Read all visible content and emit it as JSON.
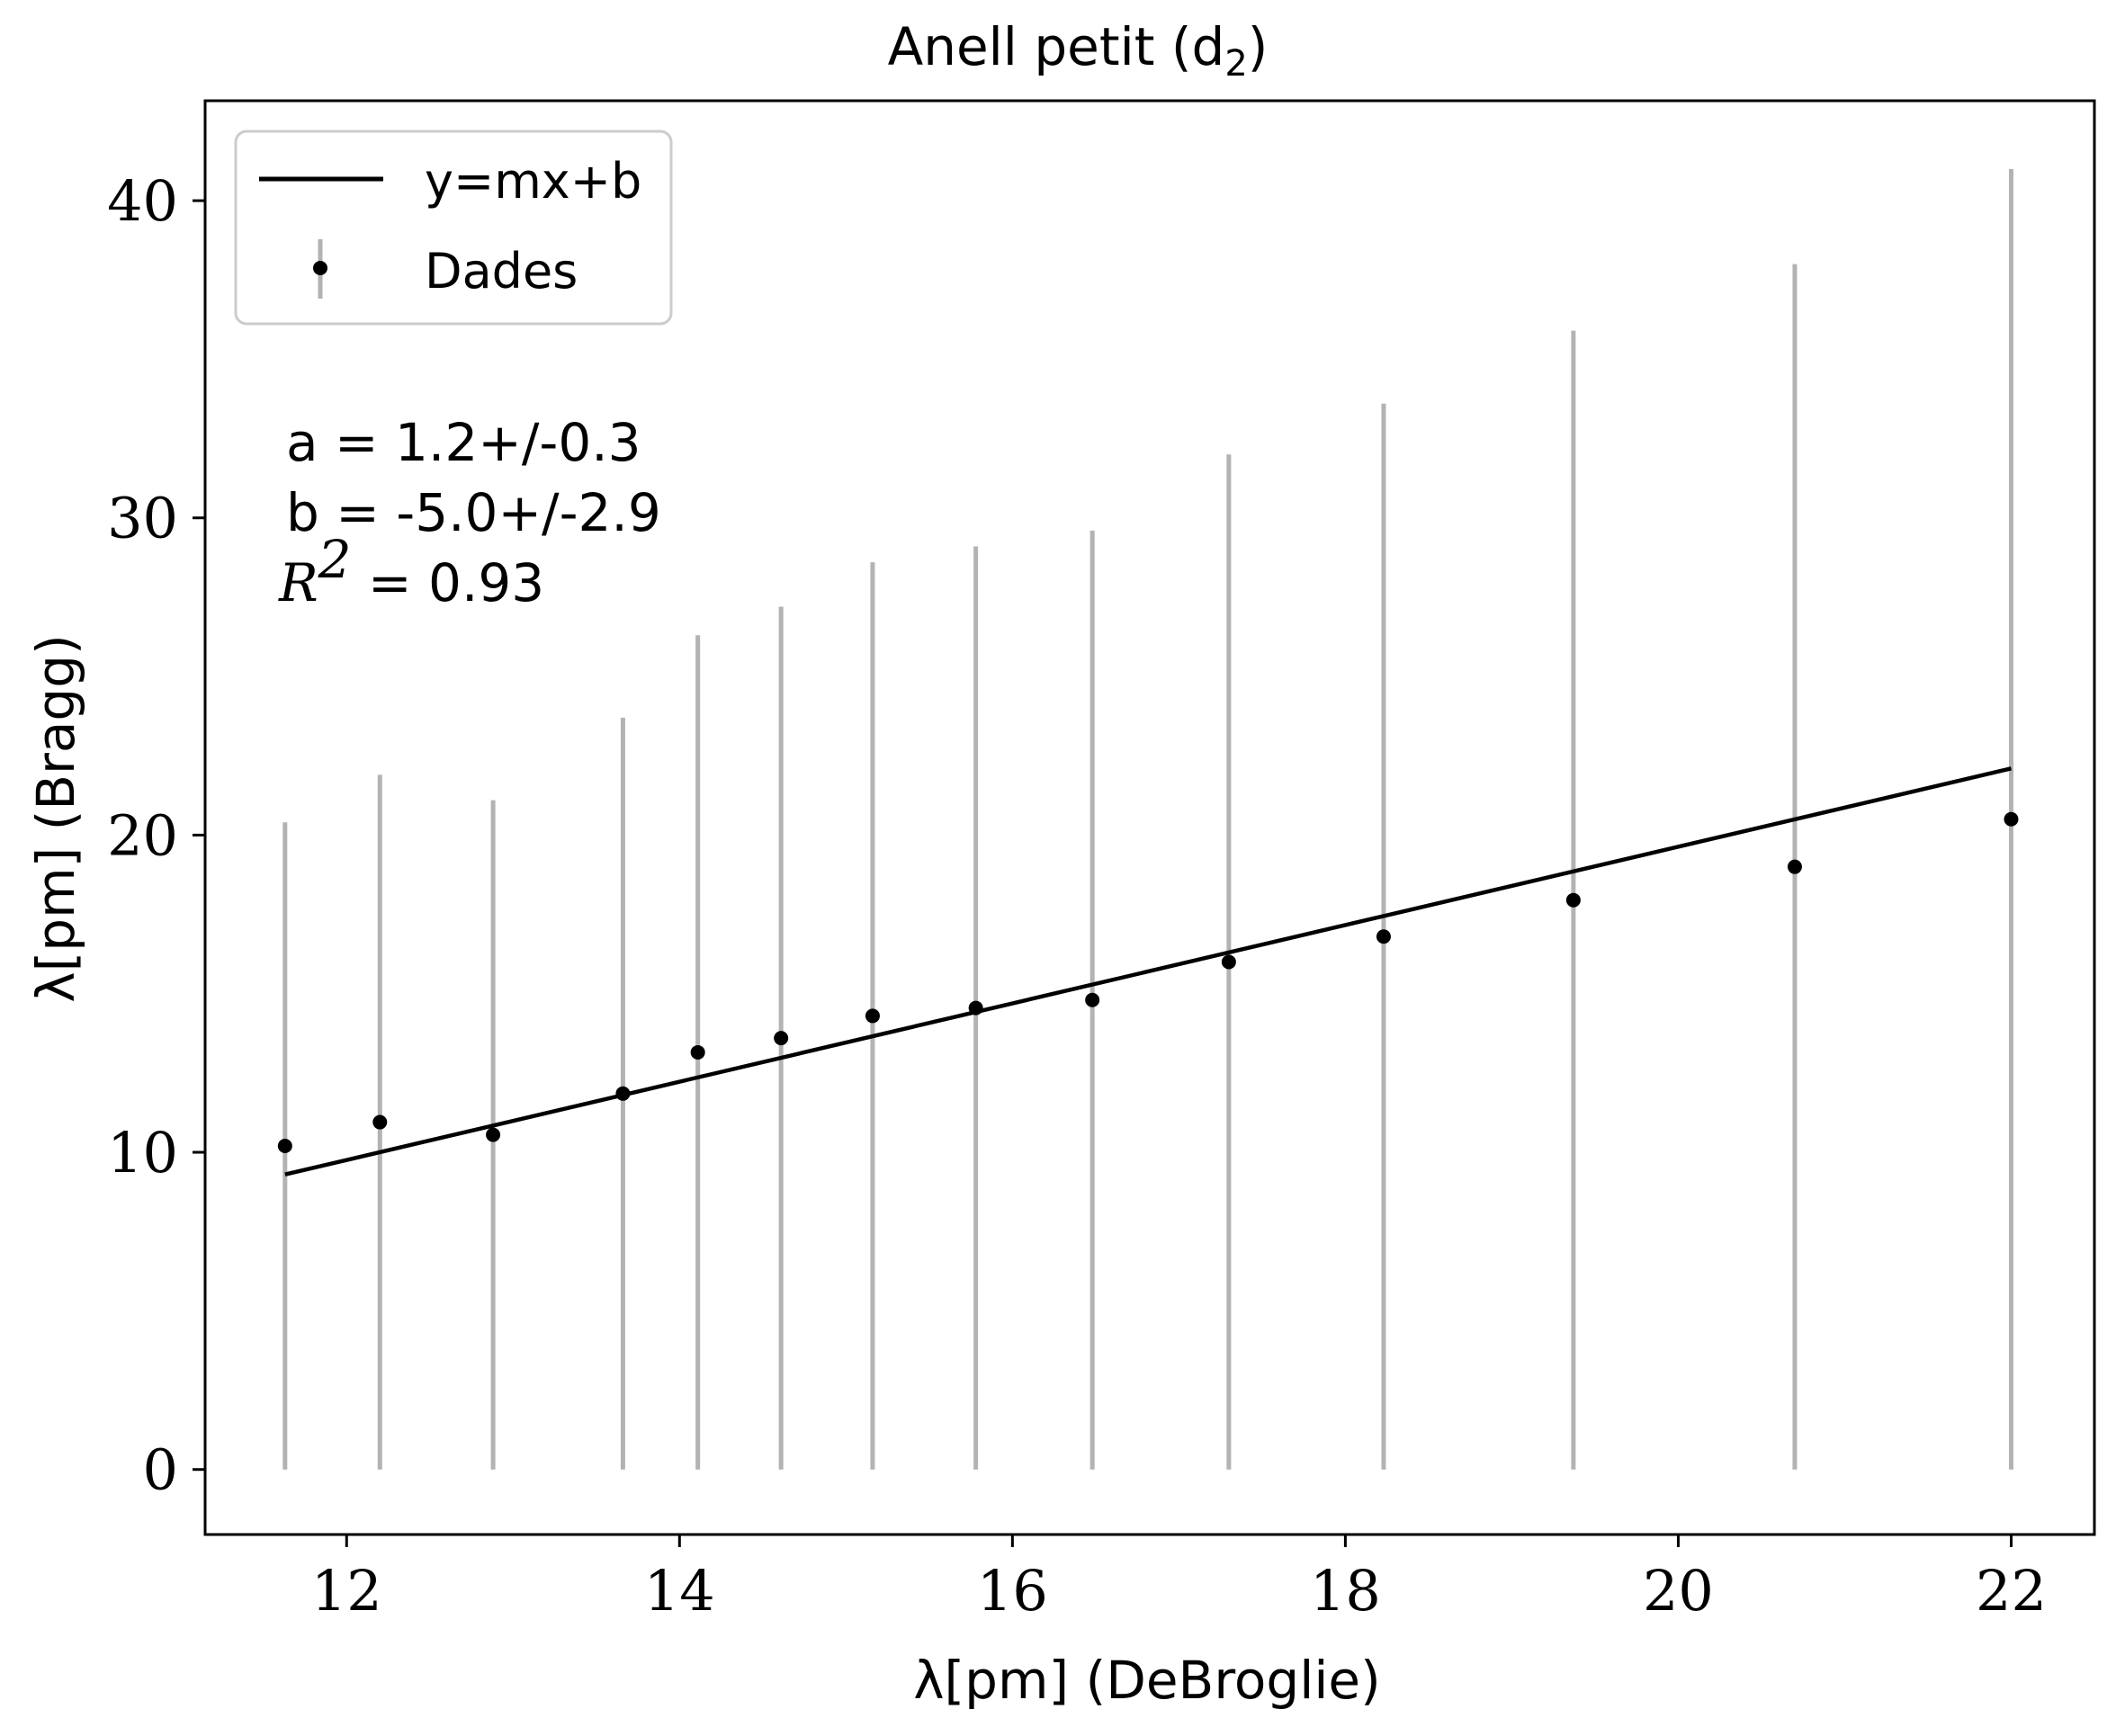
{
  "chart_data": {
    "type": "scatter",
    "title": "Anell petit (d",
    "title_subscript": "2",
    "title_close": ")",
    "xlabel": "λ[pm] (DeBroglie)",
    "ylabel": "λ[pm] (Bragg)",
    "xlim": [
      11.15,
      22.5
    ],
    "ylim": [
      -2.05,
      43.15
    ],
    "xticks": [
      12,
      14,
      16,
      18,
      20,
      22
    ],
    "yticks": [
      0,
      10,
      20,
      30,
      40
    ],
    "grid": false,
    "legend_placement": "top-left",
    "legend": [
      {
        "label": "y=mx+b",
        "kind": "line"
      },
      {
        "label": "Dades",
        "kind": "errorbar-point"
      }
    ],
    "fit_line": {
      "x": [
        11.63,
        22.0
      ],
      "y": [
        9.3,
        22.1
      ]
    },
    "series": [
      {
        "name": "Dades",
        "x": [
          11.63,
          12.2,
          12.88,
          13.66,
          14.11,
          14.61,
          15.16,
          15.78,
          16.48,
          17.3,
          18.23,
          19.37,
          20.7,
          22.0
        ],
        "y": [
          10.2,
          10.95,
          10.55,
          11.85,
          13.15,
          13.6,
          14.3,
          14.55,
          14.8,
          16.0,
          16.8,
          17.95,
          19.0,
          20.5
        ],
        "err_low": [
          0,
          0,
          0,
          0,
          0,
          0,
          0,
          0,
          0,
          0,
          0,
          0,
          0,
          0
        ],
        "err_high": [
          20.4,
          21.9,
          21.1,
          23.7,
          26.3,
          27.2,
          28.6,
          29.1,
          29.6,
          32.0,
          33.6,
          35.9,
          38.0,
          41.0
        ]
      }
    ],
    "annotations": {
      "a": "a = 1.2+/-0.3",
      "b": "b = -5.0+/-2.9",
      "r2_symbol": "R",
      "r2_sup": "2",
      "r2_value": " = 0.93"
    },
    "colors": {
      "line": "#000000",
      "points": "#000000",
      "errorbars": "#b3b3b3",
      "axes": "#000000"
    }
  }
}
